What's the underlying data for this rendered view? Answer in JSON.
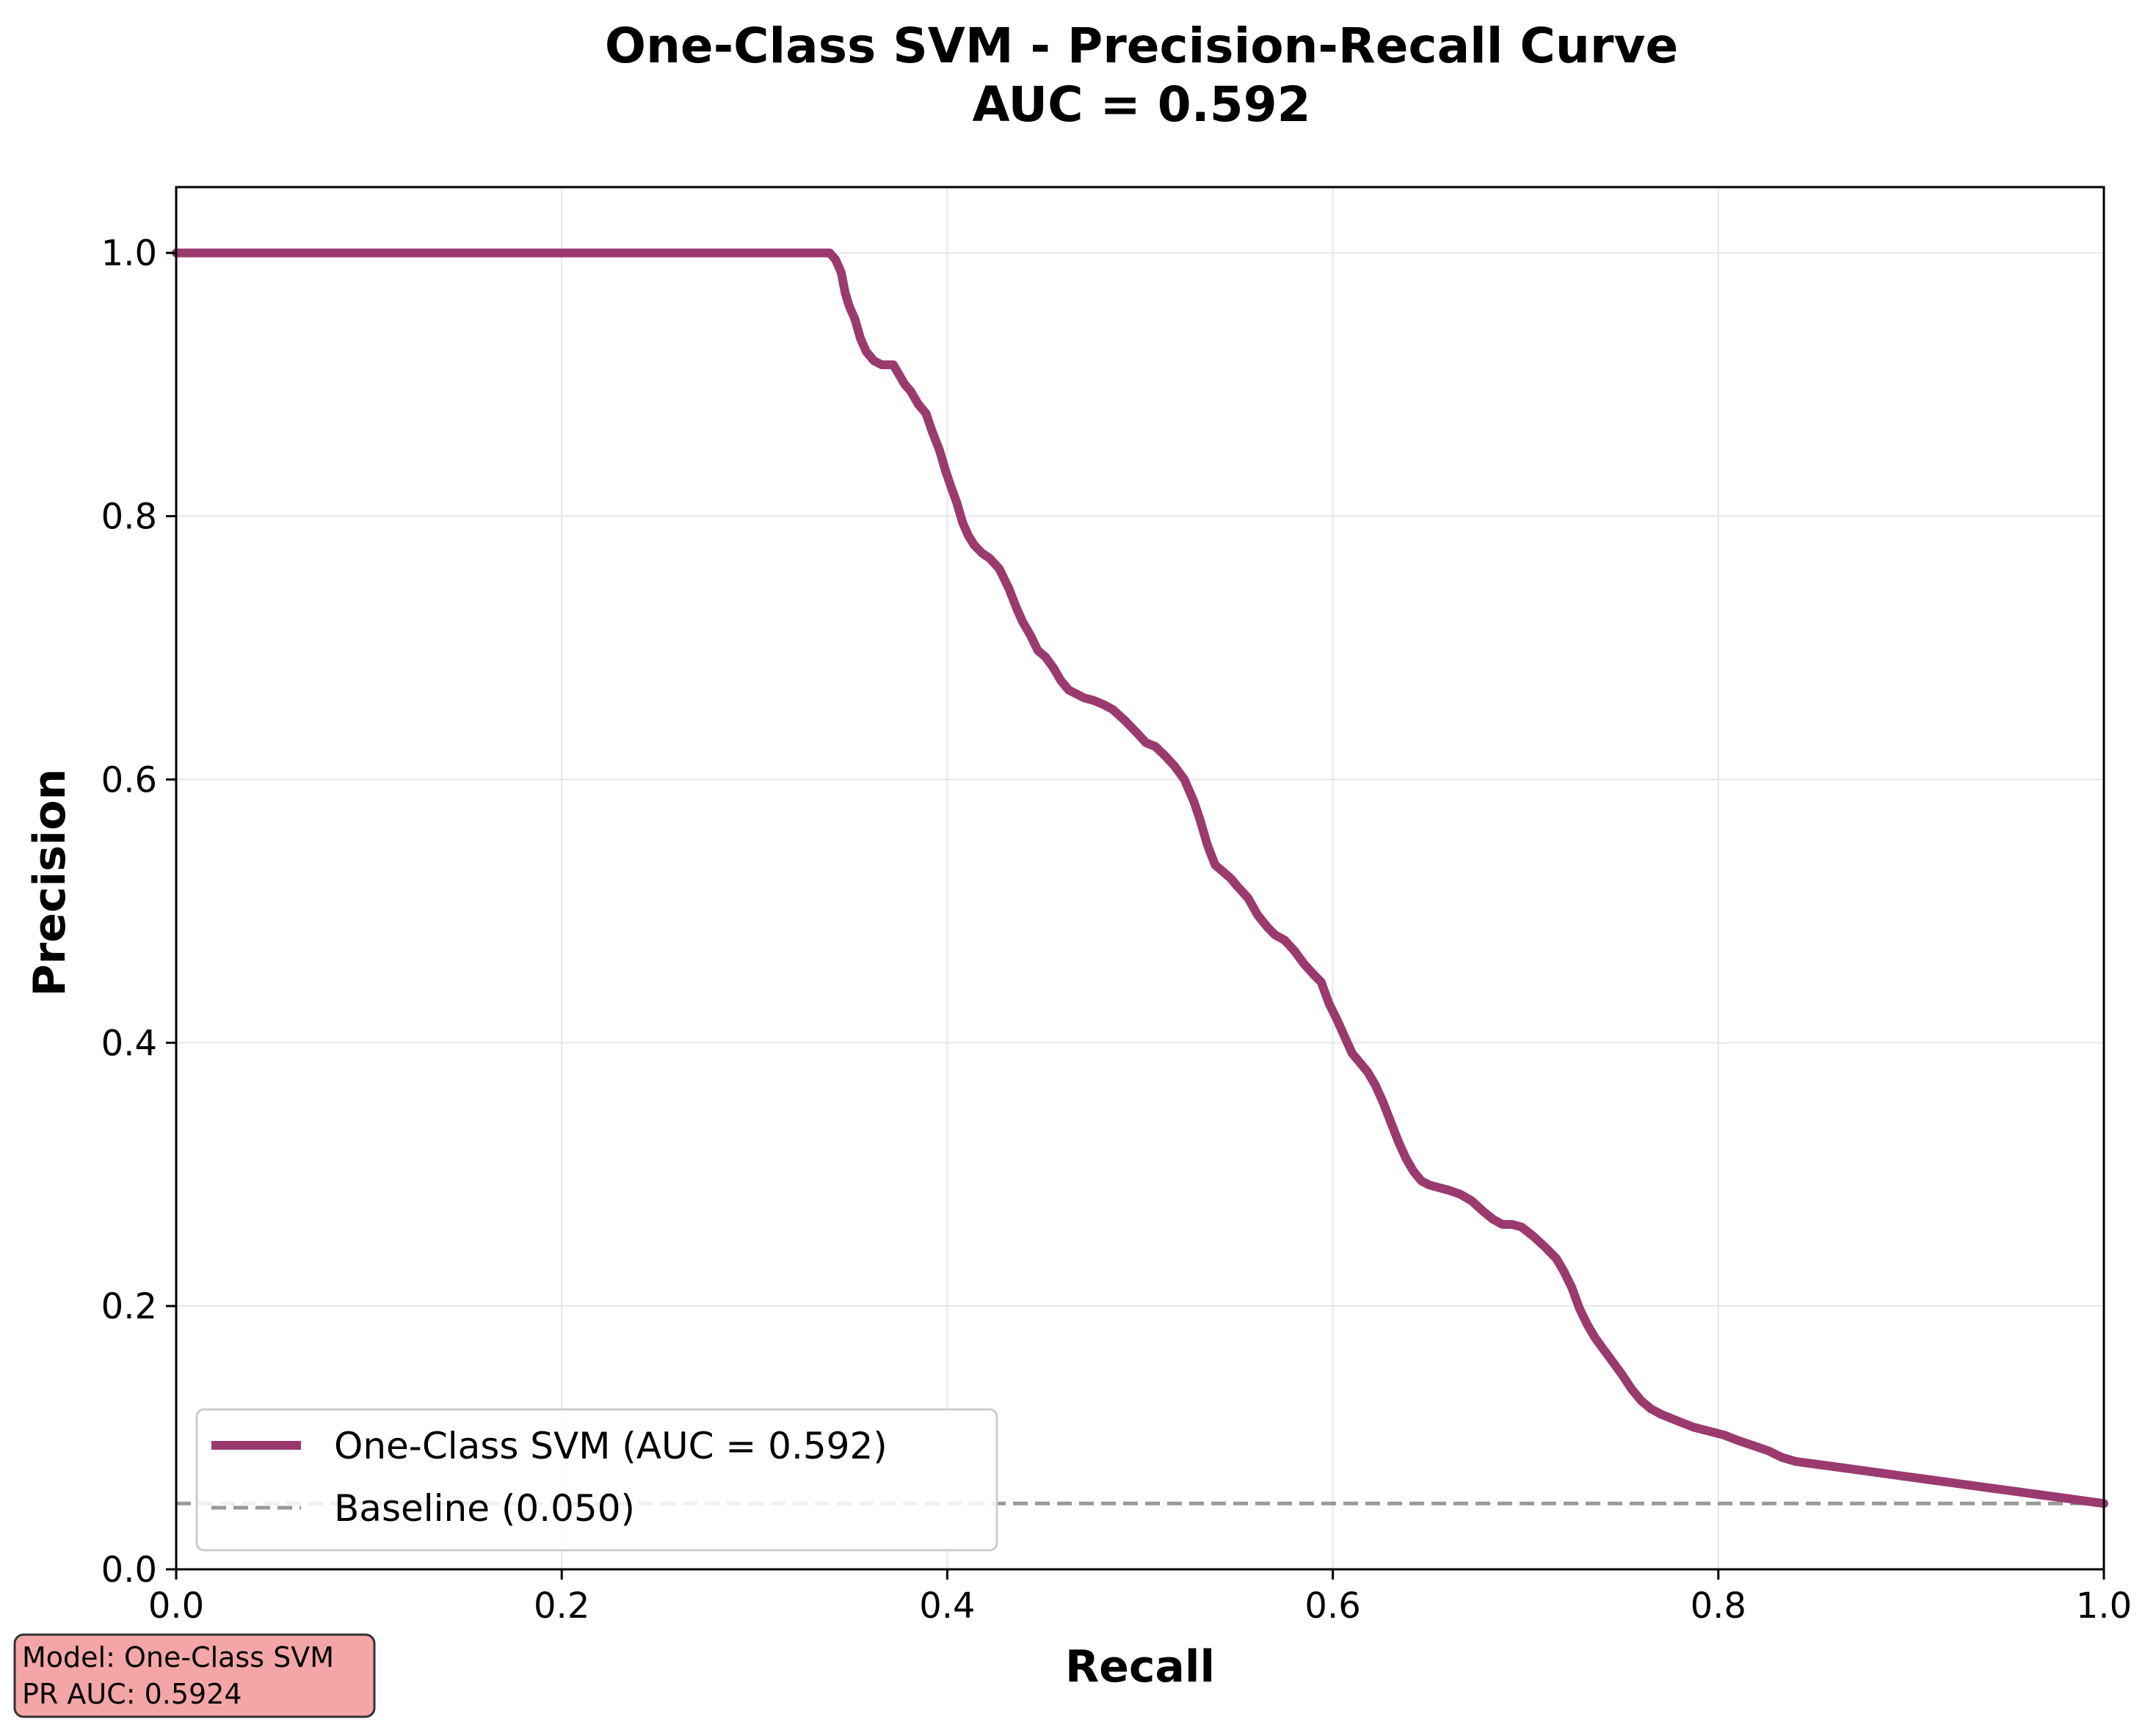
{
  "chart_data": {
    "type": "line",
    "title": "One-Class SVM - Precision-Recall Curve",
    "subtitle": "AUC = 0.592",
    "xlabel": "Recall",
    "ylabel": "Precision",
    "xlim": [
      0.0,
      1.0
    ],
    "ylim": [
      0.0,
      1.05
    ],
    "xticks": [
      "0.0",
      "0.2",
      "0.4",
      "0.6",
      "0.8",
      "1.0"
    ],
    "yticks": [
      "0.0",
      "0.2",
      "0.4",
      "0.6",
      "0.8",
      "1.0"
    ],
    "grid": true,
    "legend_position": "lower-left",
    "series": [
      {
        "name": "One-Class SVM (AUC = 0.592)",
        "color": "#9b3a6e",
        "style": "solid",
        "x": [
          0.0,
          0.339,
          0.342,
          0.345,
          0.347,
          0.349,
          0.352,
          0.355,
          0.358,
          0.362,
          0.366,
          0.372,
          0.378,
          0.381,
          0.385,
          0.389,
          0.392,
          0.396,
          0.399,
          0.402,
          0.405,
          0.408,
          0.411,
          0.414,
          0.418,
          0.422,
          0.427,
          0.432,
          0.436,
          0.439,
          0.443,
          0.447,
          0.451,
          0.455,
          0.459,
          0.463,
          0.467,
          0.471,
          0.476,
          0.481,
          0.486,
          0.492,
          0.498,
          0.503,
          0.508,
          0.513,
          0.518,
          0.523,
          0.528,
          0.531,
          0.535,
          0.539,
          0.543,
          0.547,
          0.551,
          0.556,
          0.561,
          0.566,
          0.57,
          0.575,
          0.58,
          0.585,
          0.59,
          0.594,
          0.598,
          0.602,
          0.606,
          0.61,
          0.614,
          0.618,
          0.622,
          0.626,
          0.63,
          0.634,
          0.638,
          0.642,
          0.646,
          0.65,
          0.655,
          0.66,
          0.666,
          0.672,
          0.678,
          0.683,
          0.688,
          0.693,
          0.698,
          0.704,
          0.71,
          0.716,
          0.72,
          0.724,
          0.728,
          0.732,
          0.736,
          0.74,
          0.745,
          0.75,
          0.755,
          0.76,
          0.765,
          0.77,
          0.775,
          0.78,
          0.787,
          0.795,
          0.803,
          0.81,
          0.818,
          0.826,
          0.833,
          0.84,
          0.85,
          0.86,
          0.87,
          0.88,
          0.89,
          0.9,
          0.91,
          0.92,
          0.93,
          0.94,
          0.95,
          0.96,
          0.97,
          0.98,
          0.99,
          1.0
        ],
        "y": [
          1.0,
          1.0,
          0.995,
          0.985,
          0.97,
          0.96,
          0.95,
          0.935,
          0.925,
          0.918,
          0.915,
          0.915,
          0.9,
          0.895,
          0.885,
          0.878,
          0.865,
          0.85,
          0.835,
          0.822,
          0.81,
          0.795,
          0.785,
          0.778,
          0.772,
          0.768,
          0.76,
          0.745,
          0.73,
          0.72,
          0.71,
          0.698,
          0.693,
          0.685,
          0.675,
          0.668,
          0.665,
          0.662,
          0.66,
          0.657,
          0.653,
          0.645,
          0.636,
          0.628,
          0.625,
          0.618,
          0.61,
          0.6,
          0.583,
          0.57,
          0.55,
          0.535,
          0.53,
          0.525,
          0.518,
          0.51,
          0.497,
          0.488,
          0.482,
          0.478,
          0.47,
          0.46,
          0.452,
          0.446,
          0.43,
          0.418,
          0.405,
          0.392,
          0.385,
          0.378,
          0.368,
          0.355,
          0.34,
          0.325,
          0.312,
          0.302,
          0.295,
          0.292,
          0.29,
          0.288,
          0.285,
          0.28,
          0.272,
          0.266,
          0.262,
          0.262,
          0.26,
          0.253,
          0.245,
          0.236,
          0.226,
          0.214,
          0.198,
          0.186,
          0.176,
          0.168,
          0.158,
          0.148,
          0.137,
          0.128,
          0.122,
          0.118,
          0.115,
          0.112,
          0.108,
          0.105,
          0.102,
          0.098,
          0.094,
          0.09,
          0.085,
          0.082,
          0.08,
          0.078,
          0.076,
          0.074,
          0.072,
          0.07,
          0.068,
          0.066,
          0.064,
          0.062,
          0.06,
          0.058,
          0.056,
          0.054,
          0.052,
          0.05
        ]
      },
      {
        "name": "Baseline (0.050)",
        "color": "#999999",
        "style": "dashed",
        "x": [
          0.0,
          1.0
        ],
        "y": [
          0.05,
          0.05
        ]
      }
    ]
  },
  "info_box": {
    "line1": "Model: One-Class SVM",
    "line2": "PR AUC: 0.5924",
    "background": "#f4a6a6"
  }
}
